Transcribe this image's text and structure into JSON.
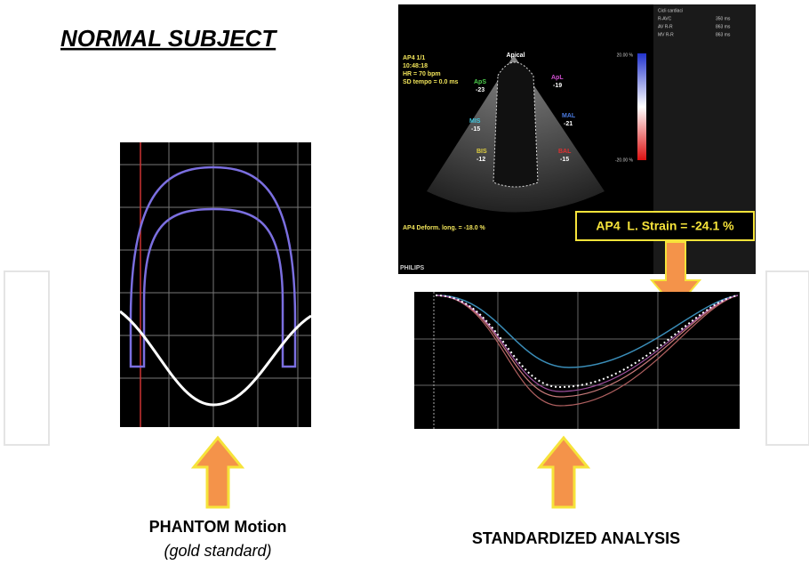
{
  "header": {
    "title": "NORMAL SUBJECT"
  },
  "phantom": {
    "caption": "PHANTOM Motion",
    "subcaption": "(gold standard)"
  },
  "echo": {
    "info": [
      "AP4 1/1",
      "10:48:18",
      "HR = 70 bpm",
      "SD tempo = 0.0 ms"
    ],
    "apex": "Apical",
    "segments": [
      {
        "label": "ApS",
        "value": -23
      },
      {
        "label": "ApL",
        "value": -19
      },
      {
        "label": "MIS",
        "value": -15
      },
      {
        "label": "MAL",
        "value": -21
      },
      {
        "label": "BIS",
        "value": -12
      },
      {
        "label": "BAL",
        "value": -15
      }
    ],
    "scale_top": "20.00 %",
    "scale_bottom": "-20.00 %",
    "deformation": "AP4 Deform. long. = -18.0 %",
    "brand": "PHILIPS",
    "panel": {
      "title": "Cicli cardiaci",
      "rows": [
        [
          "R-AVC",
          "350 ms"
        ],
        [
          "AV R-R",
          "863 ms"
        ],
        [
          "MV R-R",
          "863 ms"
        ]
      ]
    }
  },
  "strain_box": "AP4  L. Strain = -24.1 %",
  "analysis": {
    "caption": "STANDARDIZED ANALYSIS"
  }
}
